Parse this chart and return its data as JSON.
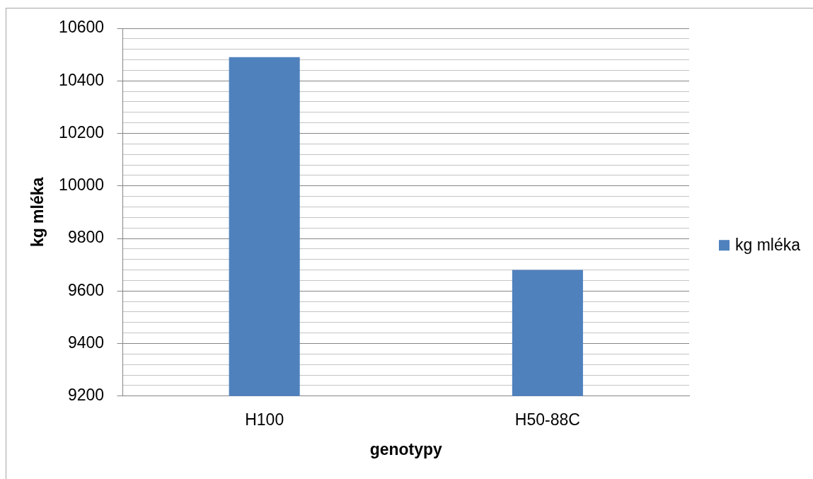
{
  "chart_data": {
    "type": "bar",
    "categories": [
      "H100",
      "H50-88C"
    ],
    "series": [
      {
        "name": "kg mléka",
        "color": "#4f81bd",
        "values": [
          10490,
          9680
        ]
      }
    ],
    "xlabel": "genotypy",
    "ylabel": "kg mléka",
    "ylim": [
      9200,
      10600
    ],
    "yticks": [
      9200,
      {
        "value": 9240,
        "label": null
      },
      {
        "value": 9280,
        "label": null
      },
      {
        "value": 9320,
        "label": null
      },
      {
        "value": 9360,
        "label": null
      },
      9400,
      {
        "value": 9440,
        "label": null
      },
      {
        "value": 9480,
        "label": null
      },
      {
        "value": 9520,
        "label": null
      },
      {
        "value": 9560,
        "label": null
      },
      9600,
      {
        "value": 9640,
        "label": null
      },
      {
        "value": 9680,
        "label": null
      },
      {
        "value": 9720,
        "label": null
      },
      {
        "value": 9760,
        "label": null
      },
      9800,
      {
        "value": 9840,
        "label": null
      },
      {
        "value": 9880,
        "label": null
      },
      {
        "value": 9920,
        "label": null
      },
      {
        "value": 9960,
        "label": null
      },
      10000,
      {
        "value": 10040,
        "label": null
      },
      {
        "value": 10080,
        "label": null
      },
      {
        "value": 10120,
        "label": null
      },
      {
        "value": 10160,
        "label": null
      },
      10200,
      {
        "value": 10240,
        "label": null
      },
      {
        "value": 10280,
        "label": null
      },
      {
        "value": 10320,
        "label": null
      },
      {
        "value": 10360,
        "label": null
      },
      10400,
      {
        "value": 10440,
        "label": null
      },
      {
        "value": 10480,
        "label": null
      },
      {
        "value": 10520,
        "label": null
      },
      {
        "value": 10560,
        "label": null
      },
      10600
    ],
    "grid": "y",
    "legend": "right"
  }
}
